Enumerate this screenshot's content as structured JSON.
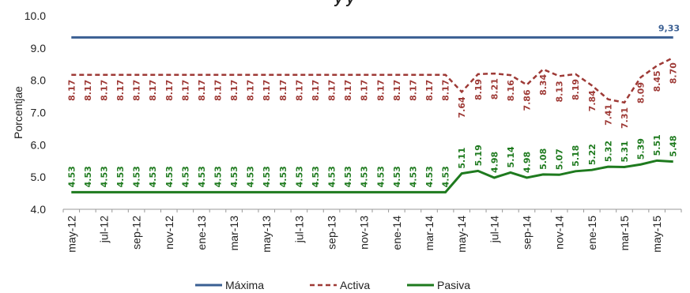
{
  "chart_data": {
    "type": "line",
    "title_partial": "y      y",
    "ylabel": "Porcentjae",
    "ylim": [
      4.0,
      10.0
    ],
    "yticks": [
      "4.0",
      "5.0",
      "6.0",
      "7.0",
      "8.0",
      "9.0",
      "10.0"
    ],
    "x": [
      "may-12",
      "jun-12",
      "jul-12",
      "ago-12",
      "sep-12",
      "oct-12",
      "nov-12",
      "dic-12",
      "ene-13",
      "feb-13",
      "mar-13",
      "abr-13",
      "may-13",
      "jun-13",
      "jul-13",
      "ago-13",
      "sep-13",
      "oct-13",
      "nov-13",
      "dic-13",
      "ene-14",
      "feb-14",
      "mar-14",
      "abr-14",
      "may-14",
      "jun-14",
      "jul-14",
      "ago-14",
      "sep-14",
      "oct-14",
      "nov-14",
      "dic-14",
      "ene-15",
      "feb-15",
      "mar-15",
      "abr-15",
      "may-15",
      "jun-15"
    ],
    "xtick_labels": [
      "may-12",
      "jul-12",
      "sep-12",
      "nov-12",
      "ene-13",
      "mar-13",
      "may-13",
      "jul-13",
      "sep-13",
      "nov-13",
      "ene-14",
      "mar-14",
      "may-14",
      "jul-14",
      "sep-14",
      "nov-14",
      "ene-15",
      "mar-15",
      "may-15"
    ],
    "series": [
      {
        "name": "Máxima",
        "color": "#3a5f93",
        "style": "solid",
        "values": [
          9.33,
          9.33,
          9.33,
          9.33,
          9.33,
          9.33,
          9.33,
          9.33,
          9.33,
          9.33,
          9.33,
          9.33,
          9.33,
          9.33,
          9.33,
          9.33,
          9.33,
          9.33,
          9.33,
          9.33,
          9.33,
          9.33,
          9.33,
          9.33,
          9.33,
          9.33,
          9.33,
          9.33,
          9.33,
          9.33,
          9.33,
          9.33,
          9.33,
          9.33,
          9.33,
          9.33,
          9.33,
          9.33
        ],
        "end_label": "9,33"
      },
      {
        "name": "Activa",
        "color": "#9e3a36",
        "style": "dashed",
        "values": [
          8.17,
          8.17,
          8.17,
          8.17,
          8.17,
          8.17,
          8.17,
          8.17,
          8.17,
          8.17,
          8.17,
          8.17,
          8.17,
          8.17,
          8.17,
          8.17,
          8.17,
          8.17,
          8.17,
          8.17,
          8.17,
          8.17,
          8.17,
          8.17,
          7.64,
          8.19,
          8.21,
          8.16,
          7.86,
          8.34,
          8.13,
          8.19,
          7.84,
          7.41,
          7.31,
          8.09,
          8.45,
          8.7
        ],
        "labels": [
          "8.17",
          "8.17",
          "8.17",
          "8.17",
          "8.17",
          "8.17",
          "8.17",
          "8.17",
          "8.17",
          "8.17",
          "8.17",
          "8.17",
          "8.17",
          "8.17",
          "8.17",
          "8.17",
          "8.17",
          "8.17",
          "8.17",
          "8.17",
          "8.17",
          "8.17",
          "8.17",
          "8.17",
          "7.64",
          "8.19",
          "8.21",
          "8.16",
          "7.86",
          "8.34",
          "8.13",
          "8.19",
          "7.84",
          "7.41",
          "7.31",
          "8.09",
          "8.45",
          "8.70"
        ]
      },
      {
        "name": "Pasiva",
        "color": "#1e7a1e",
        "style": "solid",
        "values": [
          4.53,
          4.53,
          4.53,
          4.53,
          4.53,
          4.53,
          4.53,
          4.53,
          4.53,
          4.53,
          4.53,
          4.53,
          4.53,
          4.53,
          4.53,
          4.53,
          4.53,
          4.53,
          4.53,
          4.53,
          4.53,
          4.53,
          4.53,
          4.53,
          5.11,
          5.19,
          4.98,
          5.14,
          4.98,
          5.08,
          5.07,
          5.18,
          5.22,
          5.32,
          5.31,
          5.39,
          5.51,
          5.48
        ],
        "labels": [
          "4.53",
          "4.53",
          "4.53",
          "4.53",
          "4.53",
          "4.53",
          "4.53",
          "4.53",
          "4.53",
          "4.53",
          "4.53",
          "4.53",
          "4.53",
          "4.53",
          "4.53",
          "4.53",
          "4.53",
          "4.53",
          "4.53",
          "4.53",
          "4.53",
          "4.53",
          "4.53",
          "4.53",
          "5.11",
          "5.19",
          "4.98",
          "5.14",
          "4.98",
          "5.08",
          "5.07",
          "5.18",
          "5.22",
          "5.32",
          "5.31",
          "5.39",
          "5.51",
          "5.48"
        ]
      }
    ],
    "grid": false,
    "legend": "bottom-center"
  }
}
